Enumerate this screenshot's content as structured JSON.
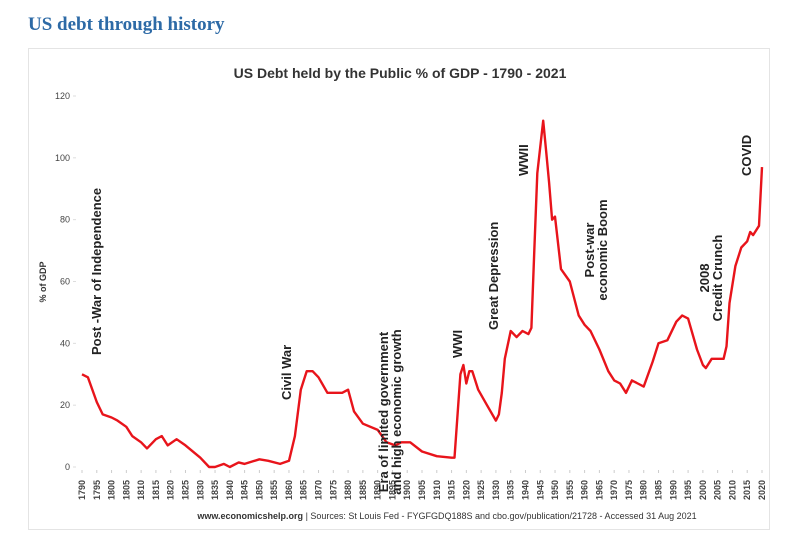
{
  "header": {
    "title": "US debt through history"
  },
  "chart_data": {
    "type": "line",
    "title": "US Debt held by the Public % of GDP - 1790 - 2021",
    "y_label": "% of GDP",
    "source": {
      "site": "www.economicshelp.org",
      "text": "| Sources: St Louis Fed - FYGFGDQ188S and cbo.gov/publication/21728 - Accessed 31 Aug 2021"
    },
    "xlim": [
      1790,
      2020
    ],
    "xticks": [
      1790,
      1795,
      1800,
      1805,
      1810,
      1815,
      1820,
      1825,
      1830,
      1835,
      1840,
      1845,
      1850,
      1855,
      1860,
      1865,
      1870,
      1875,
      1880,
      1885,
      1890,
      1895,
      1900,
      1905,
      1910,
      1915,
      1920,
      1925,
      1930,
      1935,
      1940,
      1945,
      1950,
      1955,
      1960,
      1965,
      1970,
      1975,
      1980,
      1985,
      1990,
      1995,
      2000,
      2005,
      2010,
      2015,
      2020
    ],
    "ylim": [
      0,
      120
    ],
    "yticks": [
      0,
      20,
      40,
      60,
      80,
      100,
      120
    ],
    "series": [
      {
        "name": "US Debt held by the Public % of GDP",
        "color": "#e8141b",
        "x": [
          1790,
          1792,
          1795,
          1797,
          1800,
          1802,
          1805,
          1807,
          1810,
          1812,
          1815,
          1817,
          1819,
          1822,
          1825,
          1830,
          1833,
          1835,
          1838,
          1840,
          1843,
          1845,
          1850,
          1853,
          1857,
          1860,
          1862,
          1864,
          1866,
          1868,
          1870,
          1873,
          1875,
          1878,
          1880,
          1882,
          1885,
          1890,
          1893,
          1896,
          1898,
          1901,
          1905,
          1910,
          1915,
          1916,
          1918,
          1919,
          1920,
          1921,
          1922,
          1924,
          1927,
          1930,
          1931,
          1932,
          1933,
          1935,
          1937,
          1939,
          1941,
          1942,
          1943,
          1944,
          1946,
          1947,
          1948,
          1949,
          1950,
          1952,
          1955,
          1958,
          1960,
          1962,
          1965,
          1968,
          1970,
          1972,
          1974,
          1976,
          1978,
          1980,
          1983,
          1985,
          1988,
          1991,
          1993,
          1995,
          1998,
          2000,
          2001,
          2003,
          2005,
          2007,
          2008,
          2009,
          2011,
          2013,
          2015,
          2016,
          2017,
          2019,
          2020
        ],
        "values": [
          30,
          29,
          21,
          17,
          16,
          15,
          13,
          10,
          8,
          6,
          9,
          10,
          7,
          9,
          7,
          3,
          0,
          0,
          1,
          0,
          1.5,
          1,
          2.5,
          2,
          1,
          2,
          10,
          25,
          31,
          31,
          29,
          24,
          24,
          24,
          25,
          18,
          14,
          12,
          8,
          7,
          8,
          8,
          5,
          3.5,
          3,
          3,
          30,
          33,
          27,
          31,
          31,
          25,
          20,
          15,
          17,
          24,
          35,
          44,
          42,
          44,
          43,
          45,
          70,
          95,
          112,
          102,
          92,
          80,
          81,
          64,
          60,
          49,
          46,
          44,
          38,
          31,
          28,
          27,
          24,
          28,
          27,
          26,
          34,
          40,
          41,
          47,
          49,
          48,
          38,
          33,
          32,
          35,
          35,
          35,
          39,
          53,
          65,
          71,
          73,
          76,
          75,
          78,
          97
        ]
      }
    ],
    "annotations": [
      {
        "lines": [
          "Post -War of Independence"
        ]
      },
      {
        "lines": [
          "Civil War"
        ]
      },
      {
        "lines": [
          "Era of limited government",
          "and high economic growth"
        ]
      },
      {
        "lines": [
          "WWI"
        ]
      },
      {
        "lines": [
          "Great Depression"
        ]
      },
      {
        "lines": [
          "WWII"
        ]
      },
      {
        "lines": [
          "Post-war",
          "economic Boom"
        ]
      },
      {
        "lines": [
          "2008",
          "Credit Crunch"
        ]
      },
      {
        "lines": [
          "COVID"
        ]
      }
    ]
  }
}
